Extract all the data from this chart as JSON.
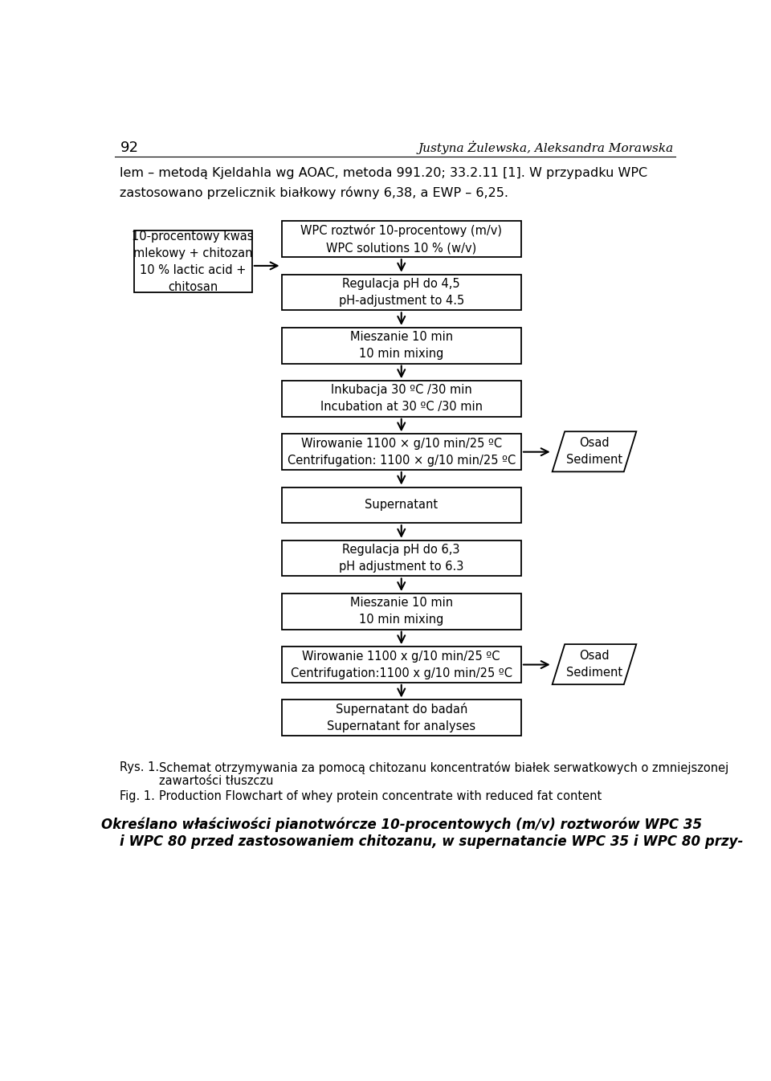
{
  "page_number": "92",
  "header_right": "Justyna Żulewska, Aleksandra Morawska",
  "intro_text_line1": "lem – metodą Kjeldahla wg AOAC, metoda 991.20; 33.2.11 [1]. W przypadku WPC",
  "intro_text_line2": "zastosowano przelicznik białkowy równy 6,38, a EWP – 6,25.",
  "left_box_text": "10-procentowy kwas\nmlekowy + chitozan\n10 % lactic acid +\nchitosan",
  "boxes": [
    {
      "text": "WPC roztwór 10-procentowy (m/v)\nWPC solutions 10 % (w/v)"
    },
    {
      "text": "Regulacja pH do 4,5\npH-adjustment to 4.5"
    },
    {
      "text": "Mieszanie 10 min\n10 min mixing"
    },
    {
      "text": "Inkubacja 30 ºC /30 min\nIncubation at 30 ºC /30 min"
    },
    {
      "text": "Wirowanie 1100 × g/10 min/25 ºC\nCentrifugation: 1100 × g/10 min/25 ºC"
    },
    {
      "text": "Supernatant"
    },
    {
      "text": "Regulacja pH do 6,3\npH adjustment to 6.3"
    },
    {
      "text": "Mieszanie 10 min\n10 min mixing"
    },
    {
      "text": "Wirowanie 1100 x g/10 min/25 ºC\nCentrifugation:1100 x g/10 min/25 ºC"
    },
    {
      "text": "Supernatant do badań\nSupernatant for analyses"
    }
  ],
  "side_box_text": "Osad\nSediment",
  "caption_rys1": "Schemat otrzymywania za pomocą chitozanu koncentratów białek serwatkowych o zmniejszonej",
  "caption_rys2": "zawartości tłuszczu",
  "caption_fig": "Production Flowchart of whey protein concentrate with reduced fat content",
  "bottom_line1": "Określano właściwości pianotwórcze 10-procentowych (m/v) roztworów WPC 35",
  "bottom_line2": "i WPC 80 przed zastosowaniem chitozanu, w supernatancie WPC 35 i WPC 80 przy-"
}
